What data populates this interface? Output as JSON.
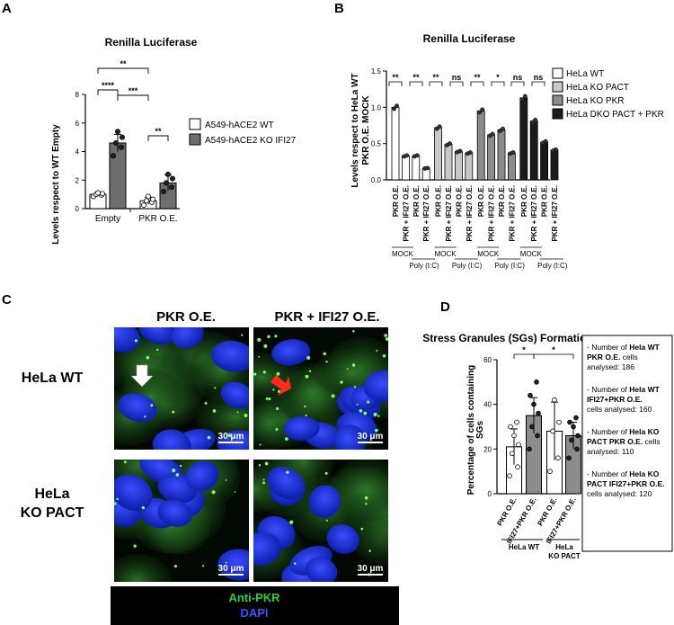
{
  "panels": [
    "A",
    "B",
    "C",
    "D"
  ],
  "chart_data": [
    {
      "panel": "A",
      "type": "bar",
      "title": "Renilla Luciferase",
      "ylabel": "Levels respect to WT Empty",
      "categories": [
        "Empty",
        "PKR O.E."
      ],
      "ylim": [
        0,
        8
      ],
      "yticks": [
        0,
        2,
        4,
        6,
        8
      ],
      "legend": "right",
      "series": [
        {
          "name": "A549-hACE2 WT",
          "color": "#ffffff",
          "values": [
            1.0,
            0.55
          ],
          "errors": [
            0.1,
            0.25
          ],
          "points": [
            [
              0.85,
              0.95,
              1.0,
              1.05,
              1.1
            ],
            [
              0.25,
              0.45,
              0.55,
              0.65,
              0.85
            ]
          ]
        },
        {
          "name": "A549-hACE2 KO IFI27",
          "color": "#6e6e6e",
          "values": [
            4.6,
            1.8
          ],
          "errors": [
            0.6,
            0.55
          ],
          "points": [
            [
              3.7,
              4.3,
              4.6,
              5.0,
              5.4
            ],
            [
              1.2,
              1.5,
              1.8,
              2.1,
              2.4
            ]
          ]
        }
      ],
      "significance": [
        "**",
        "****",
        "***",
        "**"
      ]
    },
    {
      "panel": "B",
      "type": "bar",
      "title": "Renilla Luciferase",
      "ylabel": "Levels respect to HeLa WT PKR O.E. MOCK",
      "ylim": [
        0,
        1.5
      ],
      "yticks": [
        "0.0",
        "0.5",
        "1.0",
        "1.5"
      ],
      "legend": "right",
      "categories": [
        "PKR O.E.",
        "PKR + IFI27 O.E.",
        "PKR O.E.",
        "PKR + IFI27 O.E."
      ],
      "series": [
        {
          "name": "HeLa WT",
          "color": "#ffffff",
          "values": [
            1.0,
            0.33,
            0.33,
            0.16
          ]
        },
        {
          "name": "HeLa KO PACT",
          "color": "#c8c8c8",
          "values": [
            0.72,
            0.49,
            0.39,
            0.37
          ]
        },
        {
          "name": "HeLa KO PKR",
          "color": "#8c8c8c",
          "values": [
            0.95,
            0.62,
            0.69,
            0.37
          ]
        },
        {
          "name": "HeLa DKO PACT + PKR",
          "color": "#1a1a1a",
          "values": [
            1.13,
            0.81,
            0.52,
            0.41
          ]
        }
      ],
      "significance": [
        "**",
        "**",
        "**",
        "ns",
        "**",
        "*",
        "ns",
        "ns"
      ],
      "group_labels": [
        "MOCK",
        "Poly (I:C)"
      ]
    },
    {
      "panel": "D",
      "type": "bar",
      "title": "Stress Granules (SGs) Formation",
      "ylabel": "Percentage of cells containing SGs",
      "ylim": [
        0,
        60
      ],
      "yticks": [
        0,
        20,
        40,
        60
      ],
      "categories": [
        "PKR O.E.",
        "IFI27+PKR O.E.",
        "PKR O.E.",
        "IFI27+PKR O.E."
      ],
      "values": [
        21,
        35,
        28,
        26
      ],
      "errors": [
        8,
        8,
        13,
        6
      ],
      "colors": [
        "#ffffff",
        "#8c8c8c",
        "#ffffff",
        "#8c8c8c"
      ],
      "points": [
        [
          8,
          12,
          18,
          22,
          26,
          30,
          32
        ],
        [
          20,
          26,
          30,
          36,
          40,
          44,
          50
        ],
        [
          10,
          16,
          28,
          32,
          42
        ],
        [
          16,
          20,
          24,
          26,
          30,
          32,
          34
        ]
      ],
      "significance": [
        "*",
        "*"
      ],
      "group_labels": [
        "HeLa WT",
        "HeLa KO PACT"
      ]
    }
  ],
  "panel_c": {
    "columns": [
      "PKR O.E.",
      "PKR + IFI27 O.E."
    ],
    "rows": [
      "HeLa WT",
      "HeLa KO PACT"
    ],
    "scale_bar": "30 μm",
    "legend": {
      "green": "Anti-PKR",
      "blue": "DAPI"
    }
  },
  "panel_d_notes": [
    {
      "pre": "- Number of ",
      "bold": "Hela WT PKR O.E.",
      "post": " cells analysed: 186"
    },
    {
      "pre": "- Number of ",
      "bold": "Hela WT IFI27+PKR O.E.",
      "post": " cells analysed: 160"
    },
    {
      "pre": "- Number of ",
      "bold": "Hela KO PACT PKR O.E.",
      "post": " cells analysed: 110"
    },
    {
      "pre": "- Number of ",
      "bold": "Hela KO PACT IFI27+PKR O.E.",
      "post": " cells analysed: 120"
    }
  ]
}
